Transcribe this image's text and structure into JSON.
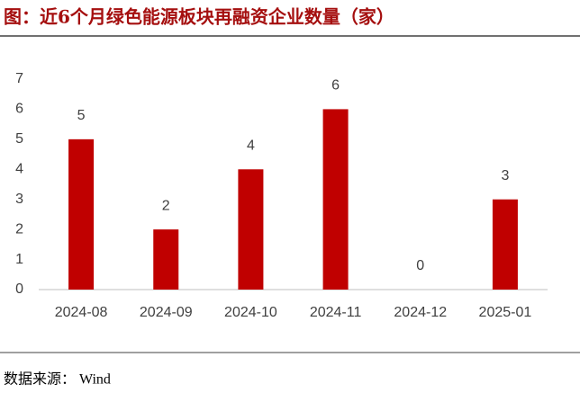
{
  "chart_data": {
    "type": "bar",
    "title": "图：近6个月绿色能源板块再融资企业数量（家）",
    "categories": [
      "2024-08",
      "2024-09",
      "2024-10",
      "2024-11",
      "2024-12",
      "2025-01"
    ],
    "values": [
      5,
      2,
      4,
      6,
      0,
      3
    ],
    "color": "#c00000",
    "ylim": [
      0,
      7
    ],
    "yticks": [
      0,
      1,
      2,
      3,
      4,
      5,
      6,
      7
    ],
    "grid": false,
    "source": "数据来源：  Wind"
  }
}
